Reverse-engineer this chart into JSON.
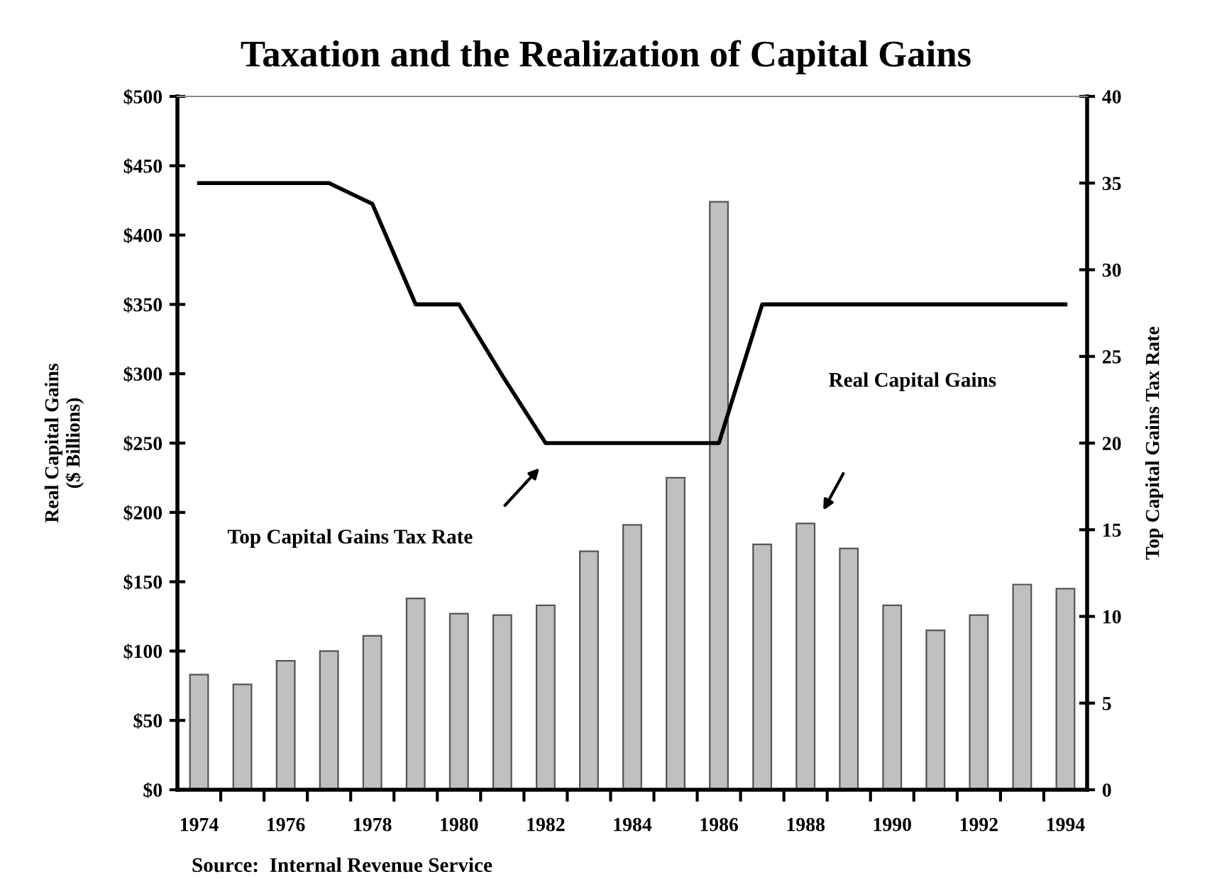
{
  "chart_data": {
    "type": "bar",
    "title": "Taxation and the Realization of Capital Gains",
    "categories": [
      "1974",
      null,
      "1976",
      null,
      "1978",
      null,
      "1980",
      null,
      "1982",
      null,
      "1984",
      null,
      "1986",
      null,
      "1988",
      null,
      "1990",
      null,
      "1992",
      null,
      "1994"
    ],
    "series": [
      {
        "type": "bar",
        "color": "#c0c0c0",
        "values": [
          83,
          76,
          93,
          100,
          111,
          138,
          127,
          126,
          133,
          172,
          191,
          225,
          424,
          177,
          192,
          174,
          133,
          115,
          126,
          148,
          145
        ]
      },
      {
        "type": "line",
        "axis": "y2",
        "color": "#000000",
        "values": [
          35,
          35,
          35,
          35,
          33.8,
          28,
          28,
          23.9,
          20,
          20,
          20,
          20,
          20,
          28,
          28,
          28,
          28,
          28,
          28,
          28,
          28
        ]
      }
    ],
    "ylabel": "Real Capital Gains\n($ Billions)",
    "y2label": "Top Capital Gains Tax Rate",
    "ylim": [
      0,
      500
    ],
    "yticks": [
      {
        "value": 0,
        "label": "$0"
      },
      {
        "value": 50,
        "label": "$50"
      },
      {
        "value": 100,
        "label": "$100"
      },
      {
        "value": 150,
        "label": "$150"
      },
      {
        "value": 200,
        "label": "$200"
      },
      {
        "value": 250,
        "label": "$250"
      },
      {
        "value": 300,
        "label": "$300"
      },
      {
        "value": 350,
        "label": "$350"
      },
      {
        "value": 400,
        "label": "$400"
      },
      {
        "value": 450,
        "label": "$450"
      },
      {
        "value": 500,
        "label": "$500"
      }
    ],
    "y2lim": [
      0,
      40
    ],
    "y2ticks": [
      0,
      5,
      10,
      15,
      20,
      25,
      30,
      35,
      40
    ],
    "annotations": [
      "Top Capital Gains Tax Rate",
      "Real Capital Gains",
      "Source:  Internal Revenue Service"
    ],
    "grid": false,
    "legend": false,
    "marker": "none",
    "line_style": "solid"
  }
}
